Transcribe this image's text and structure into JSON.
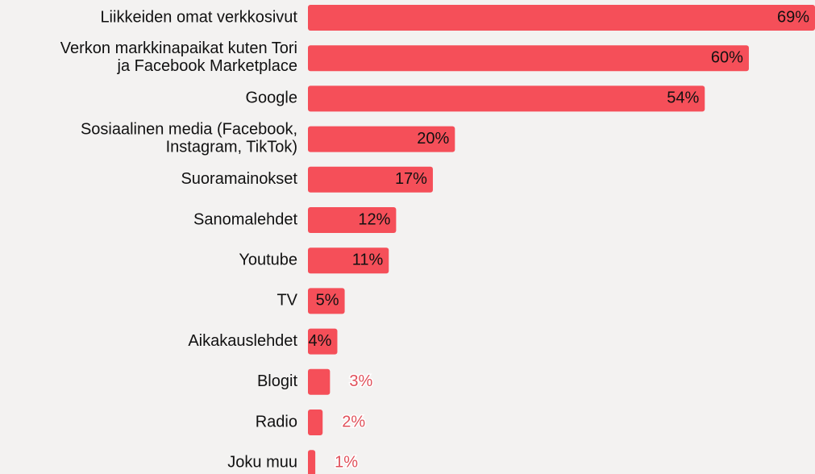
{
  "chart_data": {
    "type": "bar",
    "orientation": "horizontal",
    "categories": [
      "Liikkeiden omat verkkosivut",
      "Verkon markkinapaikat kuten Tori\nja Facebook Marketplace",
      "Google",
      "Sosiaalinen media (Facebook,\nInstagram, TikTok)",
      "Suoramainokset",
      "Sanomalehdet",
      "Youtube",
      "TV",
      "Aikakauslehdet",
      "Blogit",
      "Radio",
      "Joku muu"
    ],
    "values": [
      69,
      60,
      54,
      20,
      17,
      12,
      11,
      5,
      4,
      3,
      2,
      1
    ],
    "value_labels": [
      "69%",
      "60%",
      "54%",
      "20%",
      "17%",
      "12%",
      "11%",
      "5%",
      "4%",
      "3%",
      "2%",
      "1%"
    ],
    "color": "#f54f59",
    "xlim": [
      0,
      69
    ]
  }
}
